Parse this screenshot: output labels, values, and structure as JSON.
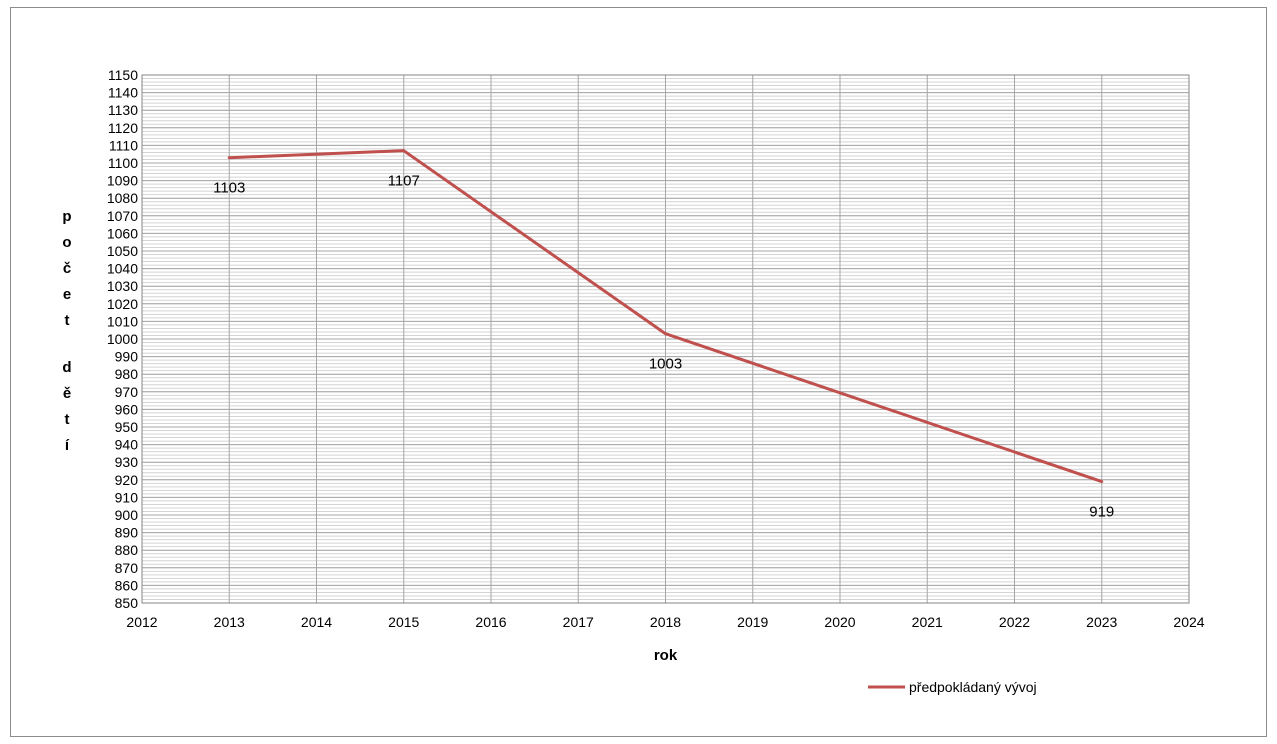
{
  "chart_data": {
    "type": "line",
    "title": "",
    "xlabel": "rok",
    "ylabel": "počet dětí",
    "xlim": [
      2012,
      2024
    ],
    "ylim": [
      850,
      1150
    ],
    "x_major_step": 1,
    "y_major_step": 10,
    "y_minor_step": 2,
    "grid": true,
    "legend_position": "bottom-right",
    "x_ticks": [
      "2012",
      "2013",
      "2014",
      "2015",
      "2016",
      "2017",
      "2018",
      "2019",
      "2020",
      "2021",
      "2022",
      "2023",
      "2024"
    ],
    "y_ticks": [
      "850",
      "860",
      "870",
      "880",
      "890",
      "900",
      "910",
      "920",
      "930",
      "940",
      "950",
      "960",
      "970",
      "980",
      "990",
      "1000",
      "1010",
      "1020",
      "1030",
      "1040",
      "1050",
      "1060",
      "1070",
      "1080",
      "1090",
      "1100",
      "1110",
      "1120",
      "1130",
      "1140",
      "1150"
    ],
    "series": [
      {
        "name": "předpokládaný vývoj",
        "color": "#c0504d",
        "x": [
          2013,
          2015,
          2018,
          2023
        ],
        "values": [
          1103,
          1107,
          1003,
          919
        ],
        "data_labels": [
          "1103",
          "1107",
          "1003",
          "919"
        ]
      }
    ]
  }
}
